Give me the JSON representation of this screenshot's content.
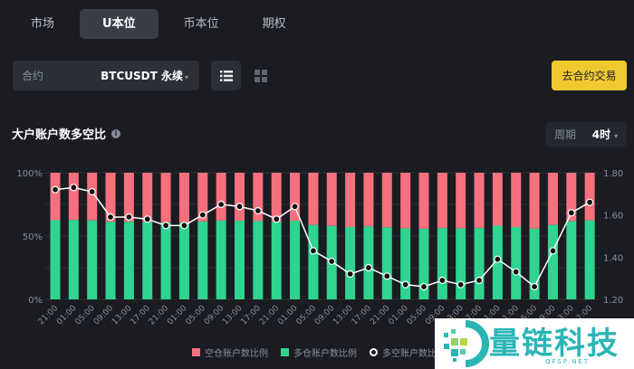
{
  "tabs": [
    {
      "label": "市场",
      "active": false
    },
    {
      "label": "U本位",
      "active": true
    },
    {
      "label": "币本位",
      "active": false
    },
    {
      "label": "期权",
      "active": false
    }
  ],
  "contract": {
    "label": "合约",
    "value": "BTCUSDT 永续",
    "caret": "▾"
  },
  "view": {
    "list_icon": "list-icon",
    "grid_icon": "grid-icon"
  },
  "trade_button": "去合约交易",
  "chart_title": "大户账户数多空比",
  "info_icon": "i",
  "period": {
    "label": "周期",
    "value": "4时",
    "caret": "▾"
  },
  "legend": {
    "short": "空仓账户数比例",
    "long": "多仓账户数比例",
    "ratio": "多空账户数比例"
  },
  "colors": {
    "short": "#f6707d",
    "long": "#2ed48f",
    "line": "#ffffff",
    "accent": "#f0c930"
  },
  "watermark": {
    "title": "量链科技",
    "sub": "QFSP.NET"
  },
  "chart_data": {
    "type": "bar",
    "title": "大户账户数多空比",
    "xlabel": "",
    "ylabel_left": "",
    "ylabel_right": "",
    "left_axis": {
      "ticks": [
        "0%",
        "50%",
        "100%"
      ],
      "range": [
        0,
        100
      ]
    },
    "right_axis": {
      "ticks": [
        "1.20",
        "1.40",
        "1.60",
        "1.80"
      ],
      "range": [
        1.2,
        1.8
      ]
    },
    "categories": [
      "21:00",
      "01:00",
      "05:00",
      "09:00",
      "13:00",
      "17:00",
      "21:00",
      "01:00",
      "05:00",
      "09:00",
      "13:00",
      "17:00",
      "21:00",
      "01:00",
      "05:00",
      "09:00",
      "13:00",
      "17:00",
      "21:00",
      "01:00",
      "05:00",
      "09:00",
      "13:00",
      "17:00",
      "21:00",
      "01:00",
      "05:00",
      "09:00",
      "13:00",
      "17:00"
    ],
    "series": [
      {
        "name": "多仓账户数比例",
        "kind": "stacked-bar",
        "color": "#2ed48f",
        "values": [
          62.5,
          62.6,
          62.3,
          61.3,
          61.3,
          61.2,
          60.8,
          60.8,
          61.5,
          62.2,
          62.1,
          61.8,
          61.2,
          62.1,
          58.8,
          58.0,
          57.1,
          57.6,
          56.9,
          56.0,
          55.8,
          56.3,
          56.0,
          56.3,
          58.2,
          57.1,
          55.8,
          58.8,
          61.7,
          62.4
        ]
      },
      {
        "name": "空仓账户数比例",
        "kind": "stacked-bar",
        "color": "#f6707d",
        "values": [
          37.5,
          37.4,
          37.7,
          38.7,
          38.7,
          38.8,
          39.2,
          39.2,
          38.5,
          37.8,
          37.9,
          38.2,
          38.8,
          37.9,
          41.2,
          42.0,
          42.9,
          42.4,
          43.1,
          44.0,
          44.2,
          43.7,
          44.0,
          43.7,
          41.8,
          42.9,
          44.2,
          41.2,
          38.3,
          37.6
        ]
      },
      {
        "name": "多空账户数比例",
        "kind": "line",
        "axis": "right",
        "color": "#ffffff",
        "values": [
          1.72,
          1.73,
          1.71,
          1.59,
          1.59,
          1.58,
          1.55,
          1.55,
          1.6,
          1.65,
          1.64,
          1.62,
          1.58,
          1.64,
          1.43,
          1.38,
          1.32,
          1.35,
          1.31,
          1.27,
          1.26,
          1.29,
          1.27,
          1.29,
          1.39,
          1.33,
          1.26,
          1.43,
          1.61,
          1.66
        ]
      }
    ],
    "grid": true,
    "legend_position": "bottom"
  }
}
